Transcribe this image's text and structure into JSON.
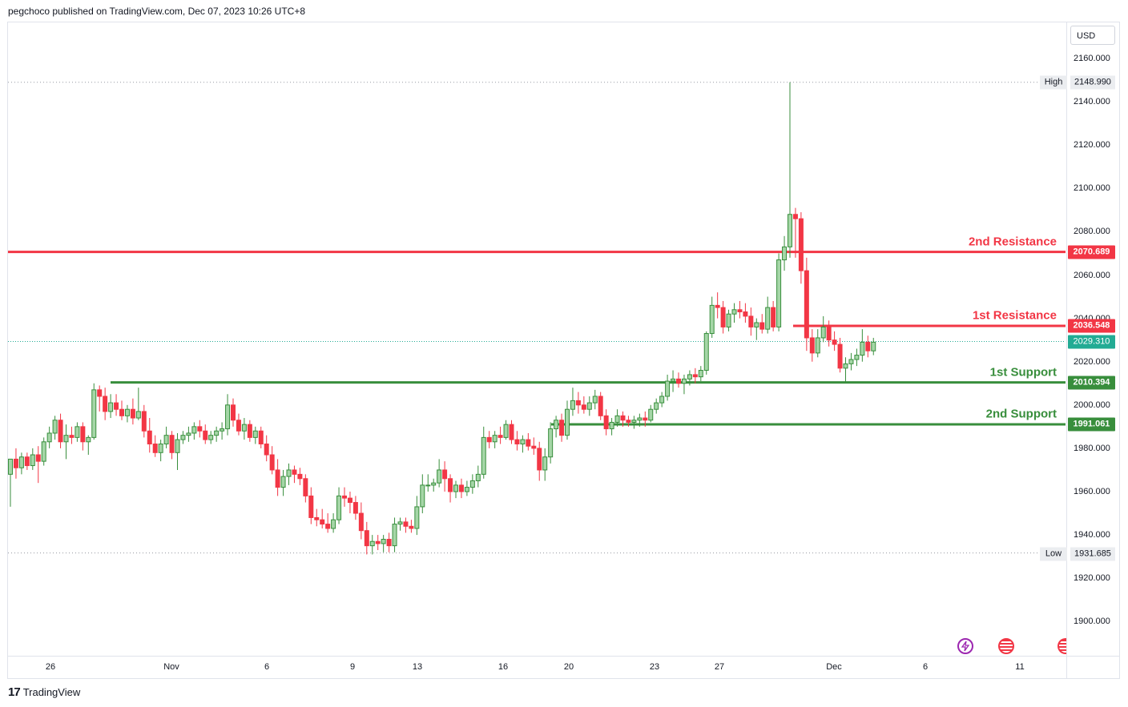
{
  "header": {
    "text": "pegchoco published on TradingView.com, Dec 07, 2023 10:26 UTC+8"
  },
  "price_axis": {
    "currency": "USD",
    "ticks": [
      "2160.000",
      "2140.000",
      "2120.000",
      "2100.000",
      "2080.000",
      "2060.000",
      "2040.000",
      "2020.000",
      "2000.000",
      "1980.000",
      "1960.000",
      "1940.000",
      "1920.000",
      "1900.000"
    ]
  },
  "time_axis": {
    "labels": [
      "26",
      "Nov",
      "6",
      "9",
      "13",
      "16",
      "20",
      "23",
      "27",
      "Dec",
      "6",
      "11"
    ]
  },
  "markers": {
    "high": {
      "caption": "High",
      "value": "2148.990"
    },
    "low": {
      "caption": "Low",
      "value": "1931.685"
    },
    "last": {
      "value": "2029.310"
    }
  },
  "levels": [
    {
      "name": "2nd Resistance",
      "value": "2070.689",
      "color": "#f23645"
    },
    {
      "name": "1st Resistance",
      "value": "2036.548",
      "color": "#f23645"
    },
    {
      "name": "1st Support",
      "value": "2010.394",
      "color": "#388e3c"
    },
    {
      "name": "2nd Support",
      "value": "1991.061",
      "color": "#388e3c"
    }
  ],
  "footer": {
    "brand": "TradingView",
    "logo": "17"
  },
  "colors": {
    "up": "#388e3c",
    "up_fill": "#a5d6a7",
    "down": "#f23645",
    "down_fill": "#f23645",
    "last_price": "#22ab94"
  },
  "icons": [
    "lightning-icon",
    "us-flag-calendar-icon",
    "us-flag-calendar-icon-clipped"
  ],
  "chart_data": {
    "type": "candlestick",
    "ylim": [
      1888,
      2168
    ],
    "interval": "4h (approx.)",
    "series": [
      {
        "name": "",
        "points": [
          {
            "o": 1968,
            "h": 1975,
            "l": 1953,
            "c": 1975
          },
          {
            "o": 1975,
            "h": 1980,
            "l": 1966,
            "c": 1971
          },
          {
            "o": 1971,
            "h": 1978,
            "l": 1968,
            "c": 1976
          },
          {
            "o": 1976,
            "h": 1978,
            "l": 1970,
            "c": 1972
          },
          {
            "o": 1972,
            "h": 1980,
            "l": 1970,
            "c": 1977
          },
          {
            "o": 1977,
            "h": 1981,
            "l": 1964,
            "c": 1974
          },
          {
            "o": 1974,
            "h": 1985,
            "l": 1972,
            "c": 1983
          },
          {
            "o": 1983,
            "h": 1990,
            "l": 1980,
            "c": 1987
          },
          {
            "o": 1987,
            "h": 1995,
            "l": 1984,
            "c": 1993
          },
          {
            "o": 1993,
            "h": 1996,
            "l": 1980,
            "c": 1983
          },
          {
            "o": 1983,
            "h": 1991,
            "l": 1975,
            "c": 1986
          },
          {
            "o": 1986,
            "h": 1990,
            "l": 1982,
            "c": 1985
          },
          {
            "o": 1985,
            "h": 1992,
            "l": 1983,
            "c": 1990
          },
          {
            "o": 1990,
            "h": 1992,
            "l": 1979,
            "c": 1983
          },
          {
            "o": 1983,
            "h": 1986,
            "l": 1977,
            "c": 1985
          },
          {
            "o": 1985,
            "h": 2010,
            "l": 1984,
            "c": 2007
          },
          {
            "o": 2007,
            "h": 2009,
            "l": 1997,
            "c": 2004
          },
          {
            "o": 2004,
            "h": 2008,
            "l": 1993,
            "c": 1997
          },
          {
            "o": 1997,
            "h": 2005,
            "l": 1994,
            "c": 2001
          },
          {
            "o": 2001,
            "h": 2005,
            "l": 1995,
            "c": 1998
          },
          {
            "o": 1998,
            "h": 2002,
            "l": 1993,
            "c": 1995
          },
          {
            "o": 1995,
            "h": 2000,
            "l": 1992,
            "c": 1998
          },
          {
            "o": 1998,
            "h": 2003,
            "l": 1991,
            "c": 1994
          },
          {
            "o": 1994,
            "h": 2008,
            "l": 1993,
            "c": 1997
          },
          {
            "o": 1997,
            "h": 2000,
            "l": 1985,
            "c": 1988
          },
          {
            "o": 1988,
            "h": 1994,
            "l": 1978,
            "c": 1982
          },
          {
            "o": 1982,
            "h": 1986,
            "l": 1976,
            "c": 1978
          },
          {
            "o": 1978,
            "h": 1984,
            "l": 1974,
            "c": 1982
          },
          {
            "o": 1982,
            "h": 1990,
            "l": 1980,
            "c": 1986
          },
          {
            "o": 1986,
            "h": 1988,
            "l": 1975,
            "c": 1978
          },
          {
            "o": 1978,
            "h": 1987,
            "l": 1970,
            "c": 1984
          },
          {
            "o": 1984,
            "h": 1988,
            "l": 1982,
            "c": 1986
          },
          {
            "o": 1986,
            "h": 1990,
            "l": 1983,
            "c": 1987
          },
          {
            "o": 1987,
            "h": 1992,
            "l": 1984,
            "c": 1990
          },
          {
            "o": 1990,
            "h": 1993,
            "l": 1985,
            "c": 1988
          },
          {
            "o": 1988,
            "h": 1991,
            "l": 1982,
            "c": 1984
          },
          {
            "o": 1984,
            "h": 1988,
            "l": 1982,
            "c": 1986
          },
          {
            "o": 1986,
            "h": 1990,
            "l": 1983,
            "c": 1988
          },
          {
            "o": 1988,
            "h": 1992,
            "l": 1984,
            "c": 1989
          },
          {
            "o": 1989,
            "h": 2005,
            "l": 1986,
            "c": 2000
          },
          {
            "o": 2000,
            "h": 2003,
            "l": 1990,
            "c": 1993
          },
          {
            "o": 1993,
            "h": 1996,
            "l": 1986,
            "c": 1988
          },
          {
            "o": 1988,
            "h": 1994,
            "l": 1984,
            "c": 1991
          },
          {
            "o": 1991,
            "h": 1993,
            "l": 1983,
            "c": 1985
          },
          {
            "o": 1985,
            "h": 1990,
            "l": 1982,
            "c": 1988
          },
          {
            "o": 1988,
            "h": 1990,
            "l": 1980,
            "c": 1982
          },
          {
            "o": 1982,
            "h": 1986,
            "l": 1974,
            "c": 1977
          },
          {
            "o": 1977,
            "h": 1981,
            "l": 1968,
            "c": 1970
          },
          {
            "o": 1970,
            "h": 1975,
            "l": 1958,
            "c": 1962
          },
          {
            "o": 1962,
            "h": 1970,
            "l": 1958,
            "c": 1967
          },
          {
            "o": 1967,
            "h": 1973,
            "l": 1963,
            "c": 1970
          },
          {
            "o": 1970,
            "h": 1972,
            "l": 1964,
            "c": 1968
          },
          {
            "o": 1968,
            "h": 1971,
            "l": 1963,
            "c": 1966
          },
          {
            "o": 1966,
            "h": 1968,
            "l": 1955,
            "c": 1958
          },
          {
            "o": 1958,
            "h": 1962,
            "l": 1945,
            "c": 1948
          },
          {
            "o": 1948,
            "h": 1952,
            "l": 1944,
            "c": 1947
          },
          {
            "o": 1947,
            "h": 1952,
            "l": 1943,
            "c": 1945
          },
          {
            "o": 1945,
            "h": 1950,
            "l": 1941,
            "c": 1943
          },
          {
            "o": 1943,
            "h": 1950,
            "l": 1941,
            "c": 1947
          },
          {
            "o": 1947,
            "h": 1962,
            "l": 1945,
            "c": 1958
          },
          {
            "o": 1958,
            "h": 1962,
            "l": 1953,
            "c": 1957
          },
          {
            "o": 1957,
            "h": 1960,
            "l": 1950,
            "c": 1955
          },
          {
            "o": 1955,
            "h": 1958,
            "l": 1947,
            "c": 1950
          },
          {
            "o": 1950,
            "h": 1955,
            "l": 1938,
            "c": 1942
          },
          {
            "o": 1942,
            "h": 1946,
            "l": 1931,
            "c": 1935
          },
          {
            "o": 1935,
            "h": 1940,
            "l": 1931,
            "c": 1937
          },
          {
            "o": 1937,
            "h": 1940,
            "l": 1933,
            "c": 1936
          },
          {
            "o": 1936,
            "h": 1940,
            "l": 1932,
            "c": 1938
          },
          {
            "o": 1938,
            "h": 1941,
            "l": 1932,
            "c": 1935
          },
          {
            "o": 1935,
            "h": 1948,
            "l": 1932,
            "c": 1945
          },
          {
            "o": 1945,
            "h": 1948,
            "l": 1942,
            "c": 1946
          },
          {
            "o": 1946,
            "h": 1948,
            "l": 1941,
            "c": 1944
          },
          {
            "o": 1944,
            "h": 1947,
            "l": 1941,
            "c": 1943
          },
          {
            "o": 1943,
            "h": 1958,
            "l": 1940,
            "c": 1953
          },
          {
            "o": 1953,
            "h": 1968,
            "l": 1950,
            "c": 1963
          },
          {
            "o": 1963,
            "h": 1968,
            "l": 1960,
            "c": 1963
          },
          {
            "o": 1963,
            "h": 1966,
            "l": 1960,
            "c": 1964
          },
          {
            "o": 1964,
            "h": 1975,
            "l": 1962,
            "c": 1970
          },
          {
            "o": 1970,
            "h": 1974,
            "l": 1960,
            "c": 1966
          },
          {
            "o": 1966,
            "h": 1968,
            "l": 1955,
            "c": 1960
          },
          {
            "o": 1960,
            "h": 1965,
            "l": 1957,
            "c": 1963
          },
          {
            "o": 1963,
            "h": 1966,
            "l": 1957,
            "c": 1960
          },
          {
            "o": 1960,
            "h": 1965,
            "l": 1958,
            "c": 1962
          },
          {
            "o": 1962,
            "h": 1968,
            "l": 1959,
            "c": 1965
          },
          {
            "o": 1965,
            "h": 1972,
            "l": 1962,
            "c": 1968
          },
          {
            "o": 1968,
            "h": 1990,
            "l": 1966,
            "c": 1985
          },
          {
            "o": 1985,
            "h": 1988,
            "l": 1980,
            "c": 1983
          },
          {
            "o": 1983,
            "h": 1988,
            "l": 1980,
            "c": 1986
          },
          {
            "o": 1986,
            "h": 1990,
            "l": 1982,
            "c": 1985
          },
          {
            "o": 1985,
            "h": 1993,
            "l": 1984,
            "c": 1991
          },
          {
            "o": 1991,
            "h": 1993,
            "l": 1982,
            "c": 1984
          },
          {
            "o": 1984,
            "h": 1988,
            "l": 1979,
            "c": 1982
          },
          {
            "o": 1982,
            "h": 1986,
            "l": 1978,
            "c": 1984
          },
          {
            "o": 1984,
            "h": 1987,
            "l": 1979,
            "c": 1981
          },
          {
            "o": 1981,
            "h": 1985,
            "l": 1977,
            "c": 1980
          },
          {
            "o": 1980,
            "h": 1983,
            "l": 1965,
            "c": 1970
          },
          {
            "o": 1970,
            "h": 1980,
            "l": 1965,
            "c": 1976
          },
          {
            "o": 1976,
            "h": 1992,
            "l": 1973,
            "c": 1989
          },
          {
            "o": 1989,
            "h": 1995,
            "l": 1985,
            "c": 1993
          },
          {
            "o": 1993,
            "h": 1996,
            "l": 1983,
            "c": 1986
          },
          {
            "o": 1986,
            "h": 2002,
            "l": 1984,
            "c": 1998
          },
          {
            "o": 1998,
            "h": 2008,
            "l": 1995,
            "c": 2002
          },
          {
            "o": 2002,
            "h": 2006,
            "l": 1996,
            "c": 2000
          },
          {
            "o": 2000,
            "h": 2004,
            "l": 1996,
            "c": 1998
          },
          {
            "o": 1998,
            "h": 2004,
            "l": 1995,
            "c": 2001
          },
          {
            "o": 2001,
            "h": 2007,
            "l": 1998,
            "c": 2004
          },
          {
            "o": 2004,
            "h": 2006,
            "l": 1993,
            "c": 1995
          },
          {
            "o": 1995,
            "h": 1998,
            "l": 1986,
            "c": 1989
          },
          {
            "o": 1989,
            "h": 1994,
            "l": 1986,
            "c": 1992
          },
          {
            "o": 1992,
            "h": 1998,
            "l": 1990,
            "c": 1995
          },
          {
            "o": 1995,
            "h": 1997,
            "l": 1990,
            "c": 1993
          },
          {
            "o": 1993,
            "h": 1995,
            "l": 1990,
            "c": 1992
          },
          {
            "o": 1992,
            "h": 1995,
            "l": 1989,
            "c": 1993
          },
          {
            "o": 1993,
            "h": 1996,
            "l": 1990,
            "c": 1994
          },
          {
            "o": 1994,
            "h": 1997,
            "l": 1990,
            "c": 1993
          },
          {
            "o": 1993,
            "h": 2000,
            "l": 1992,
            "c": 1998
          },
          {
            "o": 1998,
            "h": 2003,
            "l": 1996,
            "c": 2001
          },
          {
            "o": 2001,
            "h": 2006,
            "l": 1999,
            "c": 2004
          },
          {
            "o": 2004,
            "h": 2014,
            "l": 2002,
            "c": 2011
          },
          {
            "o": 2011,
            "h": 2016,
            "l": 2006,
            "c": 2012
          },
          {
            "o": 2012,
            "h": 2015,
            "l": 2008,
            "c": 2010
          },
          {
            "o": 2010,
            "h": 2014,
            "l": 2005,
            "c": 2012
          },
          {
            "o": 2012,
            "h": 2016,
            "l": 2009,
            "c": 2014
          },
          {
            "o": 2014,
            "h": 2017,
            "l": 2010,
            "c": 2013
          },
          {
            "o": 2013,
            "h": 2018,
            "l": 2011,
            "c": 2016
          },
          {
            "o": 2016,
            "h": 2034,
            "l": 2014,
            "c": 2033
          },
          {
            "o": 2033,
            "h": 2050,
            "l": 2031,
            "c": 2046
          },
          {
            "o": 2046,
            "h": 2052,
            "l": 2040,
            "c": 2045
          },
          {
            "o": 2045,
            "h": 2048,
            "l": 2033,
            "c": 2036
          },
          {
            "o": 2036,
            "h": 2044,
            "l": 2034,
            "c": 2042
          },
          {
            "o": 2042,
            "h": 2047,
            "l": 2038,
            "c": 2044
          },
          {
            "o": 2044,
            "h": 2048,
            "l": 2040,
            "c": 2043
          },
          {
            "o": 2043,
            "h": 2047,
            "l": 2038,
            "c": 2041
          },
          {
            "o": 2041,
            "h": 2045,
            "l": 2032,
            "c": 2036
          },
          {
            "o": 2036,
            "h": 2040,
            "l": 2030,
            "c": 2038
          },
          {
            "o": 2038,
            "h": 2042,
            "l": 2033,
            "c": 2035
          },
          {
            "o": 2035,
            "h": 2050,
            "l": 2033,
            "c": 2045
          },
          {
            "o": 2045,
            "h": 2048,
            "l": 2034,
            "c": 2036
          },
          {
            "o": 2036,
            "h": 2070,
            "l": 2034,
            "c": 2067
          },
          {
            "o": 2067,
            "h": 2078,
            "l": 2062,
            "c": 2073
          },
          {
            "o": 2073,
            "h": 2149,
            "l": 2068,
            "c": 2088
          },
          {
            "o": 2088,
            "h": 2091,
            "l": 2068,
            "c": 2086
          },
          {
            "o": 2086,
            "h": 2089,
            "l": 2056,
            "c": 2062
          },
          {
            "o": 2062,
            "h": 2068,
            "l": 2025,
            "c": 2031
          },
          {
            "o": 2031,
            "h": 2035,
            "l": 2020,
            "c": 2024
          },
          {
            "o": 2024,
            "h": 2035,
            "l": 2022,
            "c": 2031
          },
          {
            "o": 2031,
            "h": 2041,
            "l": 2029,
            "c": 2036
          },
          {
            "o": 2036,
            "h": 2039,
            "l": 2027,
            "c": 2030
          },
          {
            "o": 2030,
            "h": 2034,
            "l": 2025,
            "c": 2028
          },
          {
            "o": 2028,
            "h": 2031,
            "l": 2015,
            "c": 2017
          },
          {
            "o": 2017,
            "h": 2022,
            "l": 2010,
            "c": 2019
          },
          {
            "o": 2019,
            "h": 2024,
            "l": 2016,
            "c": 2021
          },
          {
            "o": 2021,
            "h": 2026,
            "l": 2018,
            "c": 2023
          },
          {
            "o": 2023,
            "h": 2035,
            "l": 2020,
            "c": 2029
          },
          {
            "o": 2029,
            "h": 2032,
            "l": 2022,
            "c": 2025
          },
          {
            "o": 2025,
            "h": 2031,
            "l": 2023,
            "c": 2029
          }
        ]
      }
    ]
  }
}
